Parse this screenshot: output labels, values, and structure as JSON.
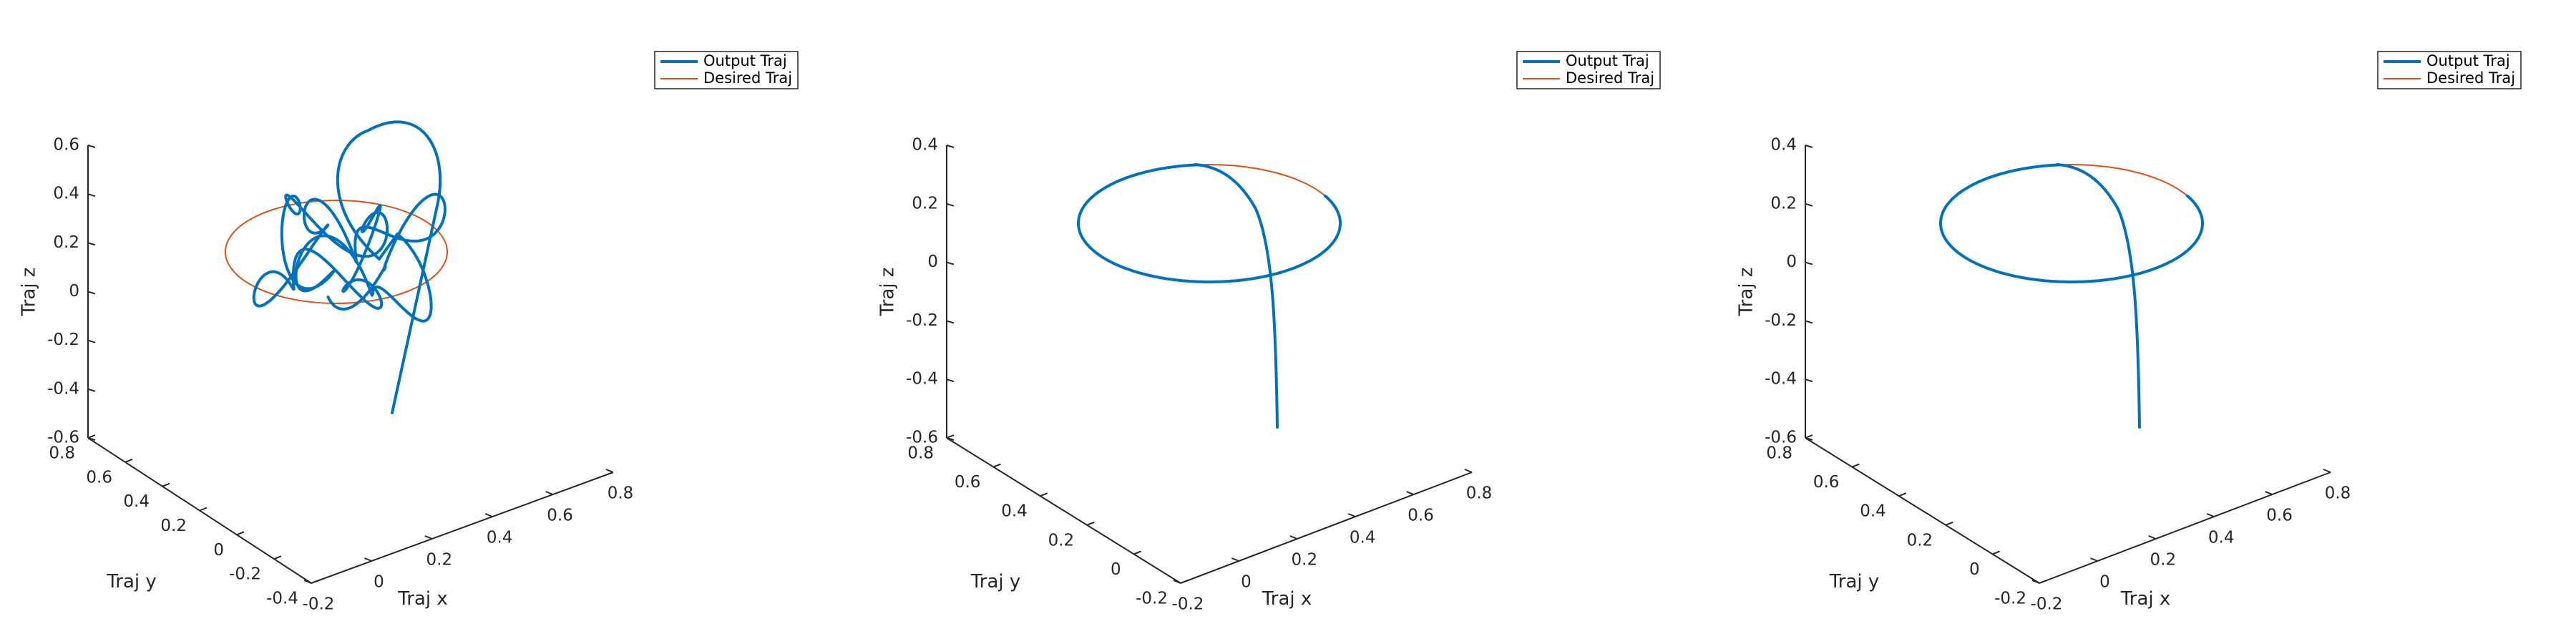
{
  "colors": {
    "output": "#0072BD",
    "desired": "#D95319",
    "axis": "#262626"
  },
  "chart_data": [
    {
      "type": "line3d",
      "legend_position": "top-right",
      "grid": false,
      "xlabel": "Traj x",
      "ylabel": "Traj y",
      "zlabel": "Traj z",
      "x_ticks": [
        "-0.2",
        "0",
        "0.2",
        "0.4",
        "0.6",
        "0.8"
      ],
      "y_ticks": [
        "-0.4",
        "-0.2",
        "0",
        "0.2",
        "0.4",
        "0.6",
        "0.8"
      ],
      "z_ticks": [
        "-0.6",
        "-0.4",
        "-0.2",
        "0",
        "0.2",
        "0.4",
        "0.6"
      ],
      "xlim": [
        -0.2,
        0.8
      ],
      "ylim": [
        -0.4,
        0.8
      ],
      "zlim": [
        -0.6,
        0.6
      ],
      "series": [
        {
          "name": "Output Traj",
          "style": "oscillating",
          "x": [
            0.3
          ],
          "y": [
            0.2
          ],
          "z": [
            -0.5
          ]
        },
        {
          "name": "Desired Traj",
          "x_center": 0.3,
          "y_center": 0.2,
          "radius": 0.3,
          "z": 0.1
        }
      ]
    },
    {
      "type": "line3d",
      "legend_position": "top-right",
      "grid": false,
      "xlabel": "Traj x",
      "ylabel": "Traj y",
      "zlabel": "Traj z",
      "x_ticks": [
        "-0.2",
        "0",
        "0.2",
        "0.4",
        "0.6",
        "0.8"
      ],
      "y_ticks": [
        "-0.2",
        "0",
        "0.2",
        "0.4",
        "0.6",
        "0.8"
      ],
      "z_ticks": [
        "-0.6",
        "-0.4",
        "-0.2",
        "0",
        "0.2",
        "0.4"
      ],
      "xlim": [
        -0.2,
        0.8
      ],
      "ylim": [
        -0.2,
        0.8
      ],
      "zlim": [
        -0.6,
        0.4
      ],
      "series": [
        {
          "name": "Output Traj",
          "style": "converging",
          "start": [
            0.55,
            0.05,
            -0.55
          ]
        },
        {
          "name": "Desired Traj",
          "x_center": 0.3,
          "y_center": 0.3,
          "radius": 0.3,
          "z": 0.1
        }
      ]
    },
    {
      "type": "line3d",
      "legend_position": "top-right",
      "grid": false,
      "xlabel": "Traj x",
      "ylabel": "Traj y",
      "zlabel": "Traj z",
      "x_ticks": [
        "-0.2",
        "0",
        "0.2",
        "0.4",
        "0.6",
        "0.8"
      ],
      "y_ticks": [
        "-0.2",
        "0",
        "0.2",
        "0.4",
        "0.6",
        "0.8"
      ],
      "z_ticks": [
        "-0.6",
        "-0.4",
        "-0.2",
        "0",
        "0.2",
        "0.4"
      ],
      "xlim": [
        -0.2,
        0.8
      ],
      "ylim": [
        -0.2,
        0.8
      ],
      "zlim": [
        -0.6,
        0.4
      ],
      "series": [
        {
          "name": "Output Traj",
          "style": "converging",
          "start": [
            0.55,
            0.05,
            -0.55
          ]
        },
        {
          "name": "Desired Traj",
          "x_center": 0.3,
          "y_center": 0.3,
          "radius": 0.3,
          "z": 0.1
        }
      ]
    }
  ]
}
